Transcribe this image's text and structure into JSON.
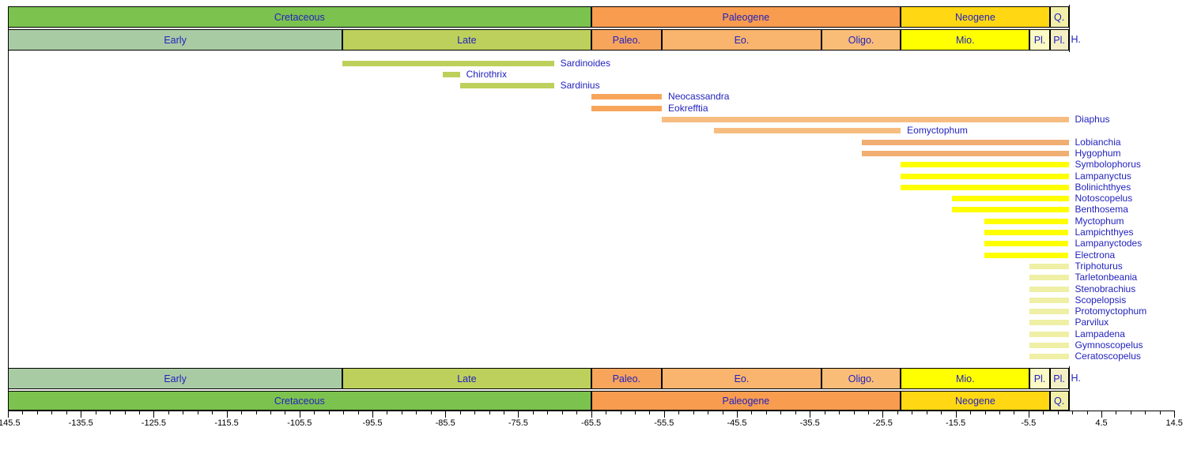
{
  "colors": {
    "cretaceous": "#7CC24E",
    "early_cretaceous": "#A9CBA4",
    "late_cretaceous": "#BDD05C",
    "paleogene": "#F89C4F",
    "paleocene": "#F8A55C",
    "eocene": "#F9B46D",
    "oligocene": "#FABD77",
    "neogene": "#FFD713",
    "miocene": "#FFFF00",
    "pliocene": "#FBF9C4",
    "pleistocene": "#F5EFC6",
    "quaternary": "#F2F0A8",
    "holocene": "#FFFFFF",
    "late_cretaceous_bar": "#BDD05C",
    "paleocene_bar": "#F8A55C",
    "eocene_bar": "#F7BD80",
    "oligocene_bar": "#F1AE72",
    "miocene_bar": "#FFFF00",
    "pliocene_bar": "#EFEFA6",
    "label_text": "#2222BE",
    "axis_text": "#000000",
    "border": "#000000"
  },
  "chart_data": {
    "type": "bar",
    "orientation": "horizontal-range",
    "x_unit": "Ma",
    "xlim": [
      -145.5,
      14.5
    ],
    "axis": {
      "major_tick_step": 10,
      "minor_tick_step": 2,
      "labels": [
        "-145.5",
        "-135.5",
        "-125.5",
        "-115.5",
        "-105.5",
        "-95.5",
        "-85.5",
        "-75.5",
        "-65.5",
        "-55.5",
        "-45.5",
        "-35.5",
        "-25.5",
        "-15.5",
        "-5.5",
        "4.5",
        "14.5"
      ]
    },
    "periods": [
      {
        "label": "Cretaceous",
        "start": -145.5,
        "end": -65.5,
        "color": "cretaceous"
      },
      {
        "label": "Paleogene",
        "start": -65.5,
        "end": -23.03,
        "color": "paleogene"
      },
      {
        "label": "Neogene",
        "start": -23.03,
        "end": -2.588,
        "color": "neogene"
      },
      {
        "label": "Q.",
        "start": -2.588,
        "end": 0,
        "color": "quaternary"
      }
    ],
    "epochs": [
      {
        "label": "Early",
        "start": -145.5,
        "end": -99.6,
        "color": "early_cretaceous"
      },
      {
        "label": "Late",
        "start": -99.6,
        "end": -65.5,
        "color": "late_cretaceous"
      },
      {
        "label": "Paleo.",
        "start": -65.5,
        "end": -55.8,
        "color": "paleocene"
      },
      {
        "label": "Eo.",
        "start": -55.8,
        "end": -33.9,
        "color": "eocene"
      },
      {
        "label": "Oligo.",
        "start": -33.9,
        "end": -23.03,
        "color": "oligocene"
      },
      {
        "label": "Mio.",
        "start": -23.03,
        "end": -5.332,
        "color": "miocene"
      },
      {
        "label": "Pl.",
        "start": -5.332,
        "end": -2.588,
        "color": "pliocene"
      },
      {
        "label": "Pl.",
        "start": -2.588,
        "end": 0,
        "color": "pleistocene"
      },
      {
        "label": "H.",
        "start": 0,
        "end": 0,
        "color": "holocene",
        "outside": true
      }
    ],
    "taxa": [
      {
        "name": "Sardinoides",
        "start": -99.6,
        "end": -70.6,
        "color": "late_cretaceous_bar"
      },
      {
        "name": "Chirothrix",
        "start": -85.8,
        "end": -83.5,
        "color": "late_cretaceous_bar"
      },
      {
        "name": "Sardinius",
        "start": -83.5,
        "end": -70.6,
        "color": "late_cretaceous_bar"
      },
      {
        "name": "Neocassandra",
        "start": -65.5,
        "end": -55.8,
        "color": "paleocene_bar"
      },
      {
        "name": "Eokrefftia",
        "start": -65.5,
        "end": -55.8,
        "color": "paleocene_bar"
      },
      {
        "name": "Diaphus",
        "start": -55.8,
        "end": 0,
        "color": "eocene_bar"
      },
      {
        "name": "Eomyctophum",
        "start": -48.6,
        "end": -23.03,
        "color": "eocene_bar"
      },
      {
        "name": "Lobianchia",
        "start": -28.4,
        "end": 0,
        "color": "oligocene_bar"
      },
      {
        "name": "Hygophum",
        "start": -28.4,
        "end": 0,
        "color": "oligocene_bar"
      },
      {
        "name": "Symbolophorus",
        "start": -23.03,
        "end": 0,
        "color": "miocene_bar"
      },
      {
        "name": "Lampanyctus",
        "start": -23.03,
        "end": 0,
        "color": "miocene_bar"
      },
      {
        "name": "Bolinichthyes",
        "start": -23.03,
        "end": 0,
        "color": "miocene_bar"
      },
      {
        "name": "Notoscopelus",
        "start": -16.0,
        "end": 0,
        "color": "miocene_bar"
      },
      {
        "name": "Benthosema",
        "start": -16.0,
        "end": 0,
        "color": "miocene_bar"
      },
      {
        "name": "Myctophum",
        "start": -11.6,
        "end": 0,
        "color": "miocene_bar"
      },
      {
        "name": "Lampichthyes",
        "start": -11.6,
        "end": 0,
        "color": "miocene_bar"
      },
      {
        "name": "Lampanyctodes",
        "start": -11.6,
        "end": 0,
        "color": "miocene_bar"
      },
      {
        "name": "Electrona",
        "start": -11.6,
        "end": 0,
        "color": "miocene_bar"
      },
      {
        "name": "Triphoturus",
        "start": -5.332,
        "end": 0,
        "color": "pliocene_bar"
      },
      {
        "name": "Tarletonbeania",
        "start": -5.332,
        "end": 0,
        "color": "pliocene_bar"
      },
      {
        "name": "Stenobrachius",
        "start": -5.332,
        "end": 0,
        "color": "pliocene_bar"
      },
      {
        "name": "Scopelopsis",
        "start": -5.332,
        "end": 0,
        "color": "pliocene_bar"
      },
      {
        "name": "Protomyctophum",
        "start": -5.332,
        "end": 0,
        "color": "pliocene_bar"
      },
      {
        "name": "Parvilux",
        "start": -5.332,
        "end": 0,
        "color": "pliocene_bar"
      },
      {
        "name": "Lampadena",
        "start": -5.332,
        "end": 0,
        "color": "pliocene_bar"
      },
      {
        "name": "Gymnoscopelus",
        "start": -5.332,
        "end": 0,
        "color": "pliocene_bar"
      },
      {
        "name": "Ceratoscopelus",
        "start": -5.332,
        "end": 0,
        "color": "pliocene_bar"
      }
    ]
  }
}
